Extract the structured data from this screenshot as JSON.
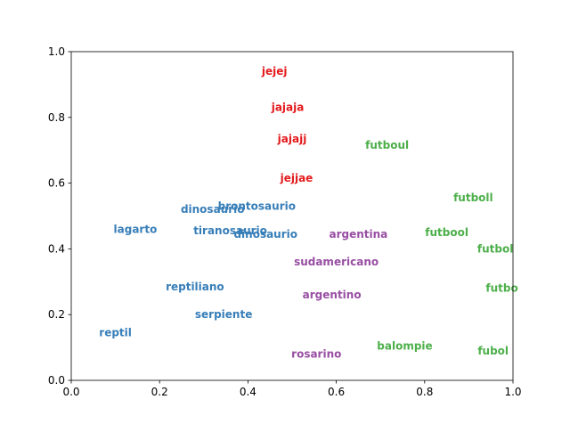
{
  "chart_data": {
    "type": "scatter",
    "title": "",
    "xlabel": "",
    "ylabel": "",
    "xlim": [
      0.0,
      1.0
    ],
    "ylim": [
      0.0,
      1.0
    ],
    "grid": false,
    "xticks": [
      "0.0",
      "0.2",
      "0.4",
      "0.6",
      "0.8",
      "1.0"
    ],
    "yticks": [
      "0.0",
      "0.2",
      "0.4",
      "0.6",
      "0.8",
      "1.0"
    ],
    "series": [
      {
        "color": "#e41a1c",
        "points": [
          {
            "label": "jejej",
            "x": 0.46,
            "y": 0.94
          },
          {
            "label": "jajaja",
            "x": 0.49,
            "y": 0.83
          },
          {
            "label": "jajajj",
            "x": 0.5,
            "y": 0.735
          },
          {
            "label": "jejjae",
            "x": 0.51,
            "y": 0.615
          }
        ]
      },
      {
        "color": "#377eb8",
        "points": [
          {
            "label": "brontosaurio",
            "x": 0.42,
            "y": 0.53
          },
          {
            "label": "dinosaurio",
            "x": 0.32,
            "y": 0.52
          },
          {
            "label": "lagarto",
            "x": 0.145,
            "y": 0.46
          },
          {
            "label": "tiranosaurio",
            "x": 0.36,
            "y": 0.455
          },
          {
            "label": "dinosaurio",
            "x": 0.44,
            "y": 0.445
          },
          {
            "label": "reptiliano",
            "x": 0.28,
            "y": 0.285
          },
          {
            "label": "serpiente",
            "x": 0.345,
            "y": 0.2
          },
          {
            "label": "reptil",
            "x": 0.1,
            "y": 0.145
          }
        ]
      },
      {
        "color": "#984ea3",
        "points": [
          {
            "label": "argentina",
            "x": 0.65,
            "y": 0.445
          },
          {
            "label": "sudamericano",
            "x": 0.6,
            "y": 0.36
          },
          {
            "label": "argentino",
            "x": 0.59,
            "y": 0.26
          },
          {
            "label": "rosarino",
            "x": 0.555,
            "y": 0.08
          }
        ]
      },
      {
        "color": "#4daf4a",
        "points": [
          {
            "label": "futboul",
            "x": 0.715,
            "y": 0.715
          },
          {
            "label": "futboll",
            "x": 0.91,
            "y": 0.555
          },
          {
            "label": "futbool",
            "x": 0.85,
            "y": 0.45
          },
          {
            "label": "futbol",
            "x": 0.96,
            "y": 0.4
          },
          {
            "label": "futbo",
            "x": 0.975,
            "y": 0.28
          },
          {
            "label": "balompie",
            "x": 0.755,
            "y": 0.105
          },
          {
            "label": "fubol",
            "x": 0.955,
            "y": 0.09
          }
        ]
      }
    ]
  }
}
